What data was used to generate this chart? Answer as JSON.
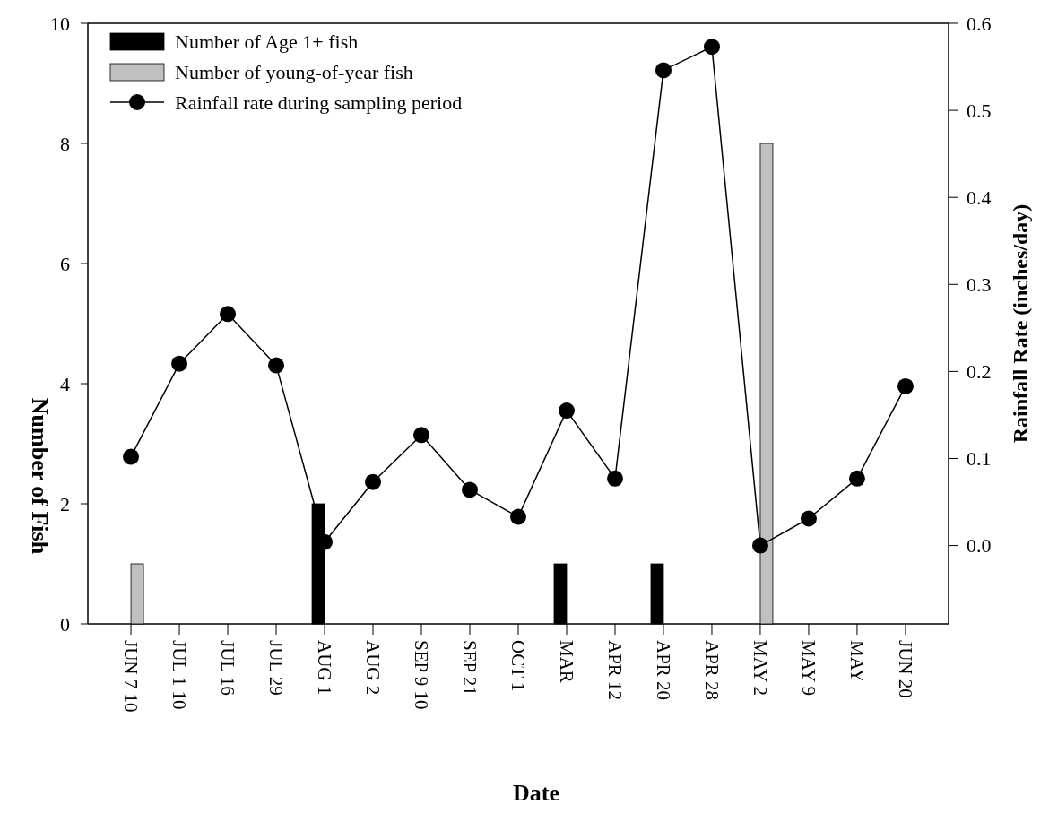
{
  "chart_data": {
    "type": "bar",
    "xlabel": "Date",
    "ylabel": "Number of Fish",
    "y2label": "Rainfall Rate (inches/day)",
    "categories": [
      "JUN 7 10",
      "JUL 1 10",
      "JUL 16",
      "JUL 29",
      "AUG 1",
      "AUG 2",
      "SEP 9 10",
      "SEP 21",
      "OCT 1",
      "MAR",
      "APR 12",
      "APR 20",
      "APR 28",
      "MAY 2",
      "MAY 9",
      "MAY",
      "JUN 20"
    ],
    "series": [
      {
        "name": "Number of Age 1+ fish",
        "color": "#000000",
        "values": [
          0,
          0,
          0,
          0,
          2,
          0,
          0,
          0,
          0,
          1,
          0,
          1,
          0,
          0,
          0,
          0,
          0
        ]
      },
      {
        "name": "Number of young-of-year fish",
        "color": "#c0c0c0",
        "values": [
          1,
          0,
          0,
          0,
          0,
          0,
          0,
          0,
          0,
          0,
          0,
          0,
          0,
          8,
          0,
          0,
          0
        ]
      },
      {
        "name": "Rainfall rate during sampling period",
        "type": "line",
        "axis": "y2",
        "color": "#000000",
        "marker": "circle",
        "values": [
          0.102,
          0.209,
          0.266,
          0.207,
          0.004,
          0.073,
          0.127,
          0.064,
          0.033,
          0.155,
          0.077,
          0.546,
          0.573,
          0.0,
          0.031,
          0.077,
          0.183
        ]
      }
    ],
    "ylim": [
      0,
      10
    ],
    "yticks": [
      0,
      2,
      4,
      6,
      8,
      10
    ],
    "y2lim": [
      -0.09,
      0.6
    ],
    "y2ticks": [
      {
        "value": 0,
        "label": "0.0"
      },
      {
        "value": 0.1,
        "label": "0.1"
      },
      {
        "value": 0.2,
        "label": "0.2"
      },
      {
        "value": 0.3,
        "label": "0.3"
      },
      {
        "value": 0.4,
        "label": "0.4"
      },
      {
        "value": 0.5,
        "label": "0.5"
      },
      {
        "value": 0.6,
        "label": "0.6"
      }
    ],
    "legend": "top left",
    "grid": false
  }
}
